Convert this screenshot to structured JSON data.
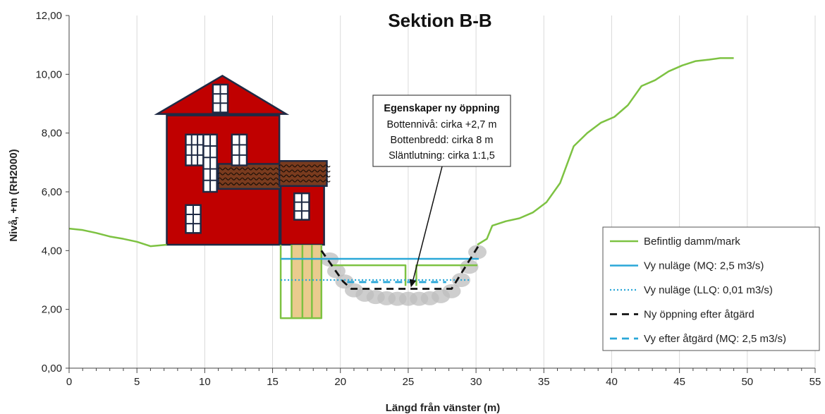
{
  "chart_data": {
    "type": "line",
    "title": "Sektion B-B",
    "xlabel": "Längd från vänster (m)",
    "ylabel": "Nivå, +m (RH2000)",
    "xlim": [
      0,
      55
    ],
    "ylim": [
      0,
      12
    ],
    "x_ticks": [
      "0",
      "5",
      "10",
      "15",
      "20",
      "25",
      "30",
      "35",
      "40",
      "45",
      "50",
      "55"
    ],
    "y_ticks": [
      "0,00",
      "2,00",
      "4,00",
      "6,00",
      "8,00",
      "10,00",
      "12,00"
    ],
    "grid": "vertical",
    "legend_position": "bottom-right",
    "series": [
      {
        "name": "Befintlig damm/mark",
        "color": "#7dc242",
        "dash": "solid",
        "segments": [
          [
            [
              0,
              4.75
            ],
            [
              1,
              4.7
            ],
            [
              2,
              4.6
            ],
            [
              3,
              4.48
            ],
            [
              4,
              4.4
            ],
            [
              5,
              4.3
            ],
            [
              6,
              4.15
            ],
            [
              7.2,
              4.2
            ]
          ],
          [
            [
              15.6,
              4.2
            ],
            [
              15.6,
              1.7
            ],
            [
              18.6,
              1.7
            ],
            [
              18.6,
              4.2
            ]
          ],
          [
            [
              16.4,
              4.2
            ],
            [
              16.4,
              1.7
            ]
          ],
          [
            [
              17.2,
              4.2
            ],
            [
              17.2,
              1.7
            ]
          ],
          [
            [
              17.9,
              4.2
            ],
            [
              17.9,
              1.7
            ]
          ],
          [
            [
              19.3,
              3.5
            ],
            [
              24.8,
              3.5
            ],
            [
              24.8,
              2.8
            ]
          ],
          [
            [
              25.6,
              2.8
            ],
            [
              25.6,
              3.5
            ],
            [
              30.1,
              3.5
            ]
          ],
          [
            [
              30.1,
              4.2
            ],
            [
              30.8,
              4.4
            ],
            [
              31.2,
              4.85
            ],
            [
              32.2,
              5.0
            ],
            [
              33.2,
              5.1
            ],
            [
              34.2,
              5.3
            ],
            [
              35.2,
              5.65
            ],
            [
              36.2,
              6.3
            ],
            [
              37.2,
              7.55
            ],
            [
              38.2,
              8.0
            ],
            [
              39.2,
              8.35
            ],
            [
              40.2,
              8.55
            ],
            [
              41.2,
              8.95
            ],
            [
              42.2,
              9.6
            ],
            [
              43.2,
              9.8
            ],
            [
              44.2,
              10.1
            ],
            [
              45.2,
              10.3
            ],
            [
              46.2,
              10.45
            ],
            [
              47.2,
              10.5
            ],
            [
              48,
              10.55
            ],
            [
              49,
              10.55
            ]
          ]
        ]
      },
      {
        "name": "Vy nuläge (MQ: 2,5 m3/s)",
        "color": "#2aa7d8",
        "dash": "solid",
        "segments": [
          [
            [
              15.6,
              3.72
            ],
            [
              30.2,
              3.72
            ]
          ]
        ]
      },
      {
        "name": "Vy nuläge (LLQ: 0,01 m3/s)",
        "color": "#2aa7d8",
        "dash": "dotted",
        "segments": [
          [
            [
              15.6,
              3.0
            ],
            [
              29.6,
              3.0
            ]
          ]
        ]
      },
      {
        "name": "Ny öppning efter åtgärd",
        "color": "#111111",
        "dash": "dashed",
        "segments": [
          [
            [
              18.6,
              4.0
            ],
            [
              20.2,
              2.95
            ],
            [
              20.8,
              2.7
            ],
            [
              28.2,
              2.7
            ],
            [
              30.3,
              4.25
            ]
          ]
        ]
      },
      {
        "name": "Vy efter åtgärd (MQ: 2,5 m3/s)",
        "color": "#2aa7d8",
        "dash": "dashed",
        "segments": [
          [
            [
              20.5,
              2.93
            ],
            [
              27.8,
              2.93
            ]
          ]
        ]
      }
    ],
    "annotation": {
      "title": "Egenskaper ny öppning",
      "lines": [
        "Bottennivå: cirka +2,7 m",
        "Bottenbredd: cirka 8 m",
        "Släntlutning: cirka 1:1,5"
      ],
      "arrow_target": [
        25.2,
        2.75
      ]
    },
    "colors": {
      "house": "#c00000",
      "house_outline": "#1f2a44",
      "deck": "#7a3b1e",
      "pillar_fill": "#e6c27a",
      "stones": "#bdbdbd"
    }
  }
}
